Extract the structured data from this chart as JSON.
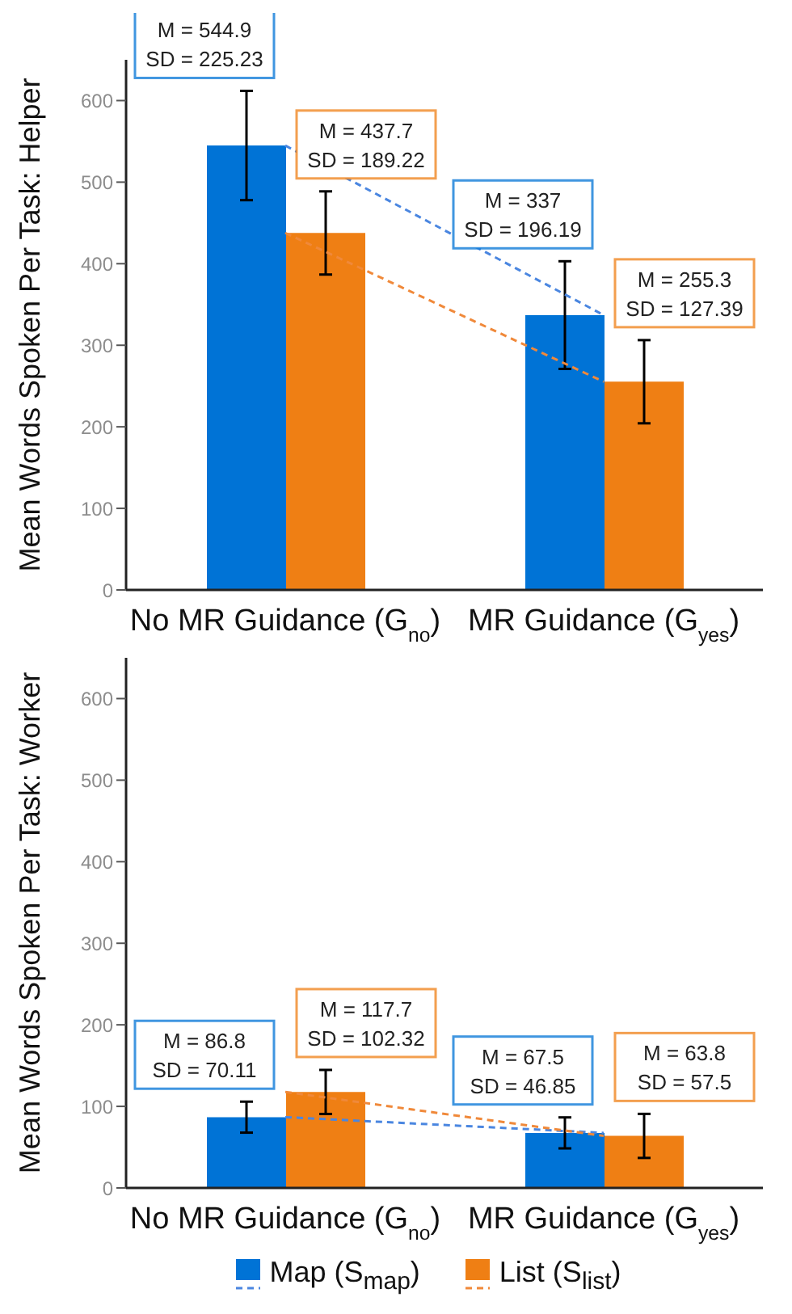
{
  "chart_data": [
    {
      "type": "bar",
      "ylabel": "Mean Words Spoken Per Task: Helper",
      "categories": [
        "No MR Guidance (G$_{no}$)",
        "MR Guidance (G$_{yes}$)"
      ],
      "ylim": [
        0,
        650
      ],
      "yticks": [
        0,
        100,
        200,
        300,
        400,
        500,
        600
      ],
      "grid": false,
      "legend": false,
      "series": [
        {
          "color": "#0073d6",
          "values": [
            544.9,
            337
          ],
          "errors": [
            67,
            66
          ]
        },
        {
          "color": "#ef7f14",
          "values": [
            437.7,
            255.3
          ],
          "errors": [
            51,
            51
          ]
        },
        {
          "type": "line",
          "color": "#4a86e0",
          "line_style": "dashed",
          "marker": "none",
          "values": [
            544.9,
            337
          ]
        },
        {
          "type": "line",
          "color": "#f0893a",
          "line_style": "dashed",
          "marker": "none",
          "values": [
            437.7,
            255.3
          ]
        }
      ],
      "annotations": [
        "M = 544.9\nSD = 225.23",
        "M = 437.7\nSD = 189.22",
        "M = 337\nSD = 196.19",
        "M = 255.3\nSD = 127.39"
      ]
    },
    {
      "type": "bar",
      "ylabel": "Mean Words Spoken Per Task: Worker",
      "categories": [
        "No MR Guidance (G$_{no}$)",
        "MR Guidance (G$_{yes}$)"
      ],
      "ylim": [
        0,
        650
      ],
      "yticks": [
        0,
        100,
        200,
        300,
        400,
        500,
        600
      ],
      "grid": false,
      "legend": "bottom",
      "series": [
        {
          "name": "Map (S$_{map}$)",
          "color": "#0073d6",
          "values": [
            86.8,
            67.5
          ],
          "errors": [
            19,
            19
          ]
        },
        {
          "name": "List (S$_{list}$)",
          "color": "#ef7f14",
          "values": [
            117.7,
            63.8
          ],
          "errors": [
            27,
            27
          ]
        },
        {
          "type": "line",
          "color": "#4a86e0",
          "line_style": "dashed",
          "marker": "none",
          "values": [
            86.8,
            67.5
          ]
        },
        {
          "type": "line",
          "color": "#f0893a",
          "line_style": "dashed",
          "marker": "none",
          "values": [
            117.7,
            63.8
          ]
        }
      ],
      "annotations": [
        "M = 86.8\nSD = 70.11",
        "M = 117.7\nSD = 102.32",
        "M = 67.5\nSD = 46.85",
        "M = 63.8\nSD = 57.5"
      ]
    }
  ]
}
